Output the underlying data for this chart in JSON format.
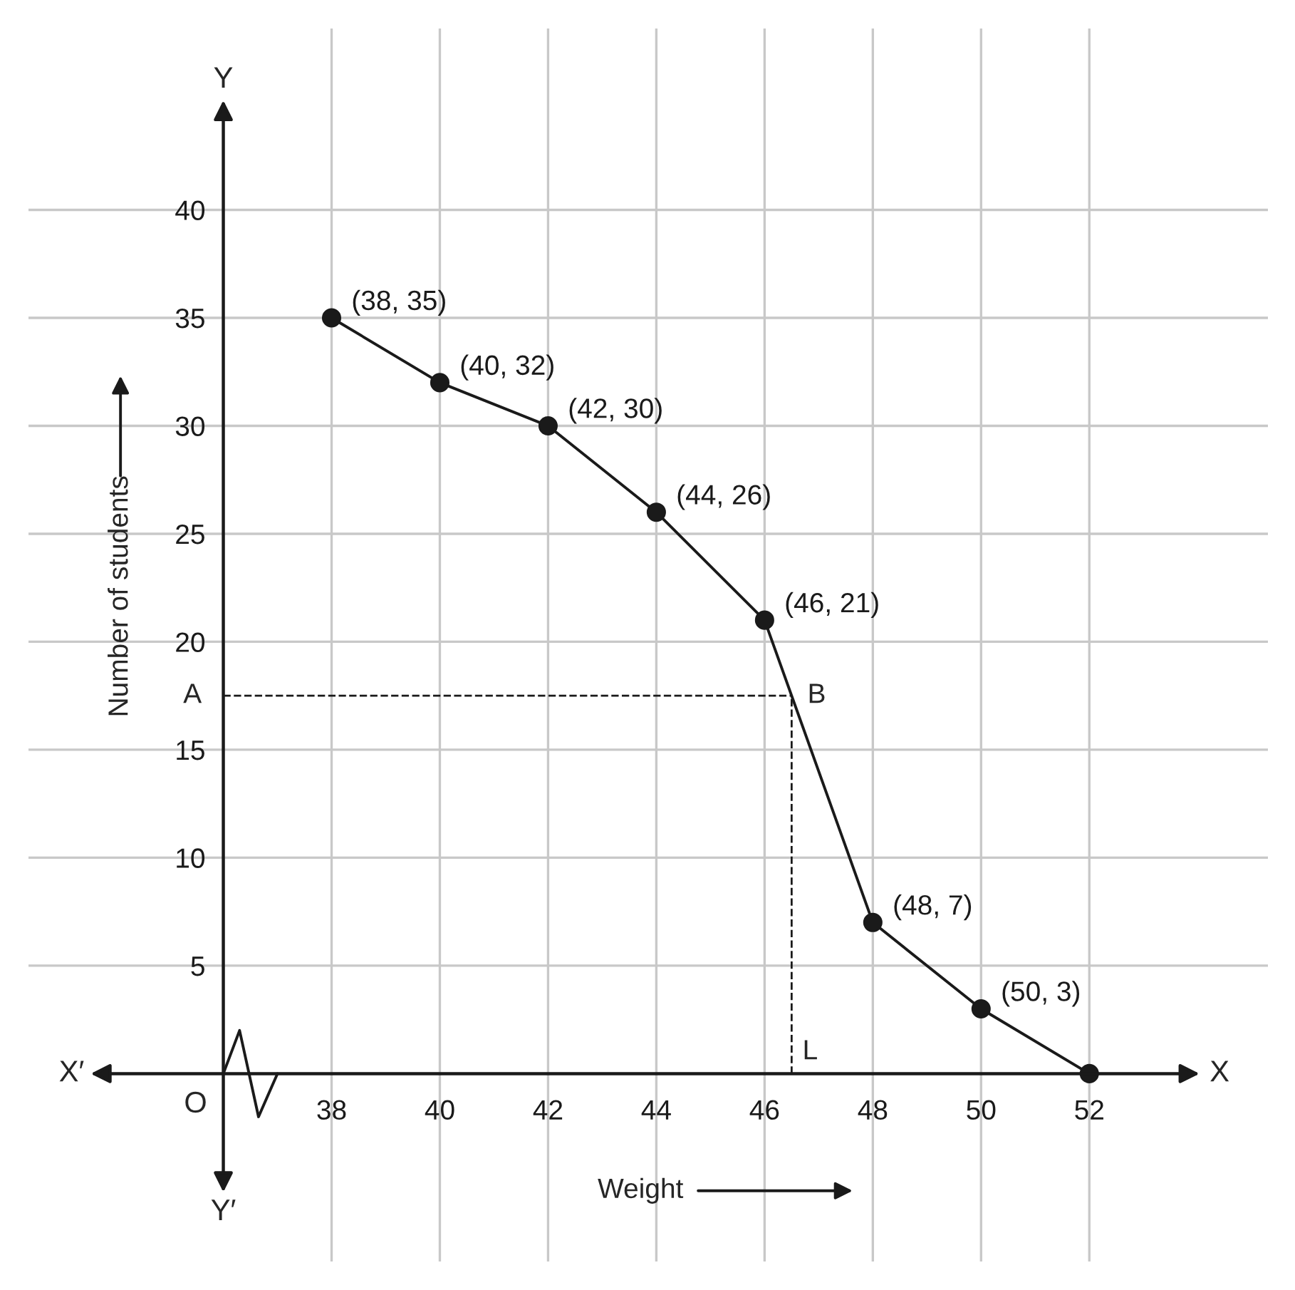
{
  "chart_data": {
    "type": "line",
    "xlabel": "Weight",
    "ylabel": "Number of students",
    "x": [
      38,
      40,
      42,
      44,
      46,
      48,
      50,
      52
    ],
    "series": [
      {
        "color": "#1a1a1a",
        "values": [
          35,
          32,
          30,
          26,
          21,
          7,
          3,
          0
        ],
        "value_labels": [
          "(38, 35)",
          "(40, 32)",
          "(42, 30)",
          "(44, 26)",
          "(46, 21)",
          "(48, 7)",
          "(50, 3)",
          null
        ]
      }
    ],
    "xlim": [
      32.4,
      55.3
    ],
    "ylim": [
      -8.7,
      48.4
    ],
    "xticks": [
      38,
      40,
      42,
      44,
      46,
      48,
      50,
      52
    ],
    "yticks": [
      5,
      10,
      15,
      20,
      25,
      30,
      35,
      40
    ],
    "ref_lines": [
      {
        "axis": "y",
        "value": 17.5,
        "label": "A",
        "color": "#1a1a1a",
        "line_style": "dashed"
      },
      {
        "axis": "x",
        "value": 46.5,
        "label": "L",
        "color": "#1a1a1a",
        "line_style": "dashed"
      }
    ],
    "annotations": [
      {
        "text": "B",
        "x": 46.5,
        "y": 17.5
      },
      "X′",
      "X",
      "Y",
      "Y′",
      "O"
    ],
    "grid": true,
    "marker": "circle",
    "line_style": "solid"
  }
}
